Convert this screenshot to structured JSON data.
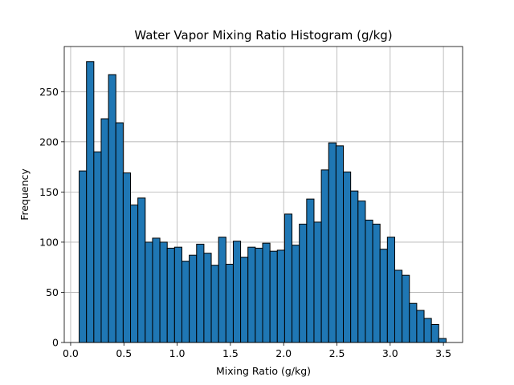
{
  "chart_data": {
    "type": "bar",
    "title": "Water Vapor Mixing Ratio Histogram (g/kg)",
    "xlabel": "Mixing Ratio (g/kg)",
    "ylabel": "Frequency",
    "xlim": [
      -0.06,
      3.68
    ],
    "ylim": [
      0,
      295
    ],
    "xticks": [
      0.0,
      0.5,
      1.0,
      1.5,
      2.0,
      2.5,
      3.0,
      3.5
    ],
    "xtick_labels": [
      "0.0",
      "0.5",
      "1.0",
      "1.5",
      "2.0",
      "2.5",
      "3.0",
      "3.5"
    ],
    "yticks": [
      0,
      50,
      100,
      150,
      200,
      250
    ],
    "ytick_labels": [
      "0",
      "50",
      "100",
      "150",
      "200",
      "250"
    ],
    "grid": true,
    "bar_color": "#1f77b4",
    "bin_start": 0.08,
    "bin_width": 0.0689,
    "values": [
      171,
      280,
      190,
      223,
      267,
      219,
      169,
      137,
      144,
      100,
      104,
      100,
      94,
      95,
      81,
      87,
      98,
      89,
      77,
      105,
      78,
      101,
      85,
      95,
      94,
      99,
      91,
      92,
      128,
      97,
      118,
      143,
      120,
      172,
      199,
      196,
      170,
      151,
      141,
      122,
      118,
      93,
      105,
      72,
      67,
      39,
      32,
      24,
      18,
      4
    ]
  }
}
